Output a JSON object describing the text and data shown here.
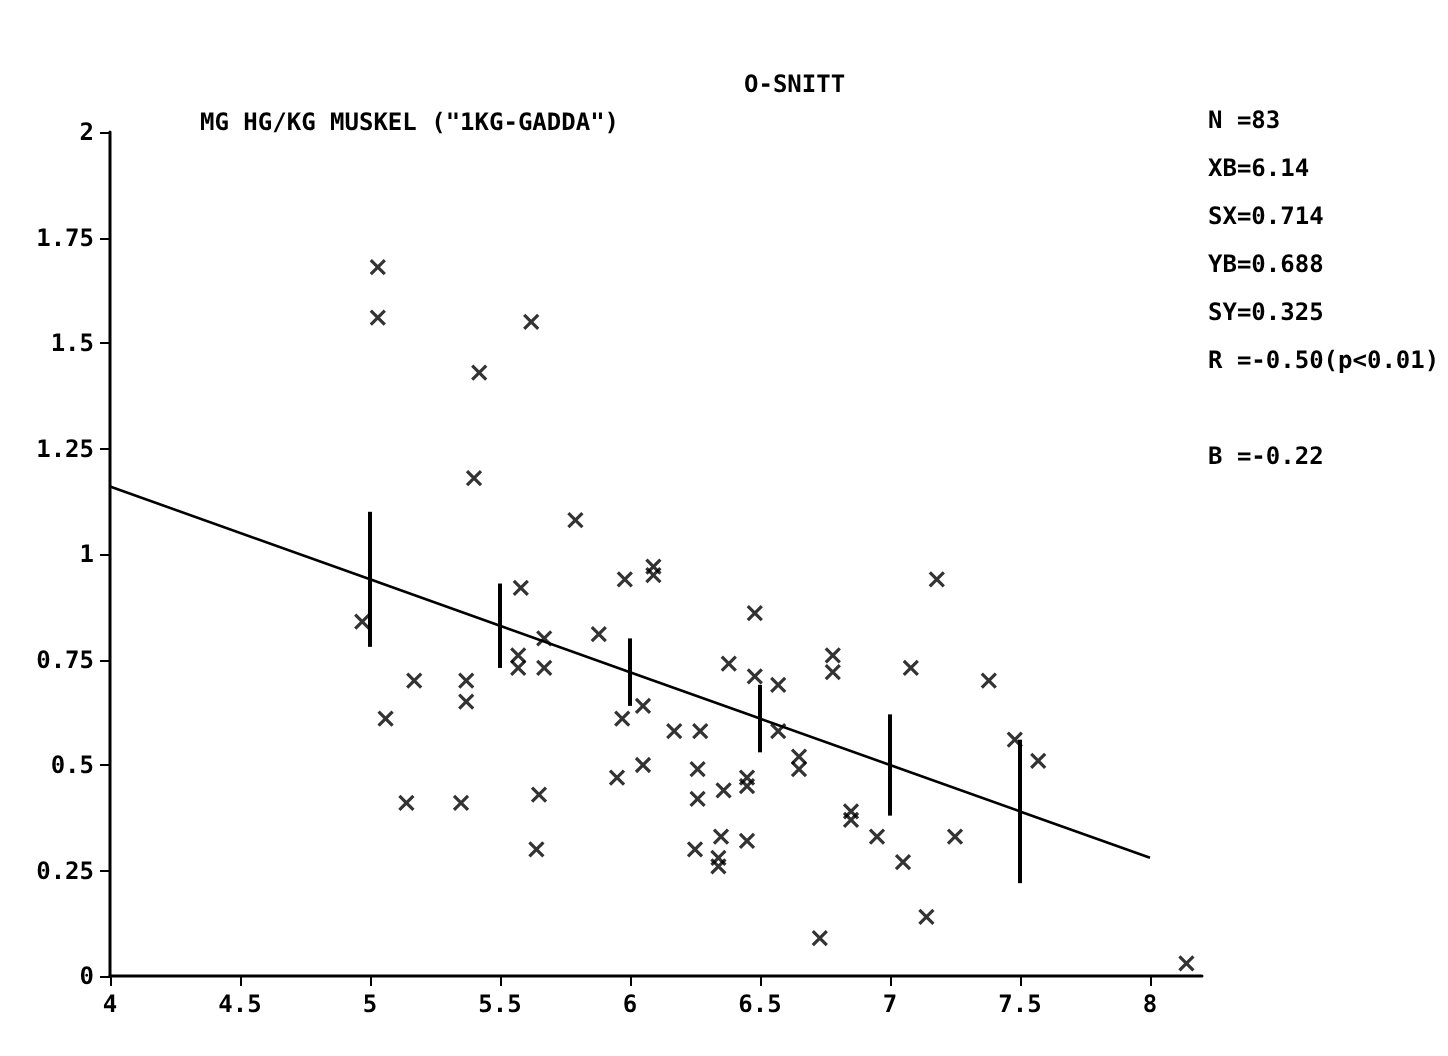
{
  "chart_data": {
    "type": "scatter",
    "title": "MG HG/KG MUSKEL (\"1KG-GADDA\")",
    "subtitle": "O-SNITT",
    "annotations": [
      "N =83",
      "XB=6.14",
      "SX=0.714",
      "YB=0.688",
      "SY=0.325",
      "R =-0.50(p<0.01)",
      "B =-0.22"
    ],
    "xlim": [
      4,
      8.2
    ],
    "xticks": [
      4,
      4.5,
      5,
      5.5,
      6,
      6.5,
      7,
      7.5,
      8
    ],
    "ylim": [
      0,
      2
    ],
    "yticks": [
      0,
      0.25,
      0.5,
      0.75,
      1,
      1.25,
      1.5,
      1.75,
      2
    ],
    "grid": false,
    "marker": "cross",
    "series": [
      {
        "type": "scatter",
        "color": "#000000",
        "x": [
          5.03,
          5.03,
          5.62,
          5.42,
          5.4,
          5.79,
          5.58,
          5.98,
          6.09,
          6.09,
          6.48,
          4.97,
          5.67,
          5.88,
          6.38,
          7.18,
          6.78,
          6.48,
          6.57,
          6.78,
          7.08,
          7.38,
          7.48,
          7.57,
          5.97,
          6.05,
          6.17,
          6.27,
          6.57,
          6.65,
          6.65,
          5.95,
          6.05,
          6.26,
          6.26,
          6.36,
          6.45,
          6.45,
          6.85,
          6.85,
          6.95,
          7.25,
          7.05,
          7.14,
          6.73,
          8.14,
          5.06,
          5.17,
          5.37,
          5.37,
          5.14,
          5.35,
          5.65,
          5.64,
          5.57,
          5.57,
          5.67,
          6.35,
          6.34,
          6.34,
          6.25,
          6.45
        ],
        "values": [
          1.68,
          1.56,
          1.55,
          1.43,
          1.18,
          1.08,
          0.92,
          0.94,
          0.97,
          0.95,
          0.86,
          0.84,
          0.8,
          0.81,
          0.74,
          0.94,
          0.76,
          0.71,
          0.69,
          0.72,
          0.73,
          0.7,
          0.56,
          0.51,
          0.61,
          0.64,
          0.58,
          0.58,
          0.58,
          0.52,
          0.49,
          0.47,
          0.5,
          0.49,
          0.42,
          0.44,
          0.47,
          0.45,
          0.39,
          0.37,
          0.33,
          0.33,
          0.27,
          0.14,
          0.09,
          0.03,
          0.61,
          0.7,
          0.7,
          0.65,
          0.41,
          0.41,
          0.43,
          0.3,
          0.76,
          0.73,
          0.73,
          0.33,
          0.28,
          0.26,
          0.3,
          0.32
        ]
      },
      {
        "type": "line",
        "color": "#000000",
        "marker": "none",
        "line_style": "solid",
        "x": [
          4,
          5,
          5.5,
          6,
          6.5,
          7,
          7.5,
          8
        ],
        "values": [
          1.16,
          0.94,
          0.83,
          0.72,
          0.61,
          0.5,
          0.39,
          0.28
        ],
        "errors": [
          null,
          0.16,
          0.1,
          0.08,
          0.08,
          0.12,
          0.17,
          null
        ]
      }
    ]
  }
}
